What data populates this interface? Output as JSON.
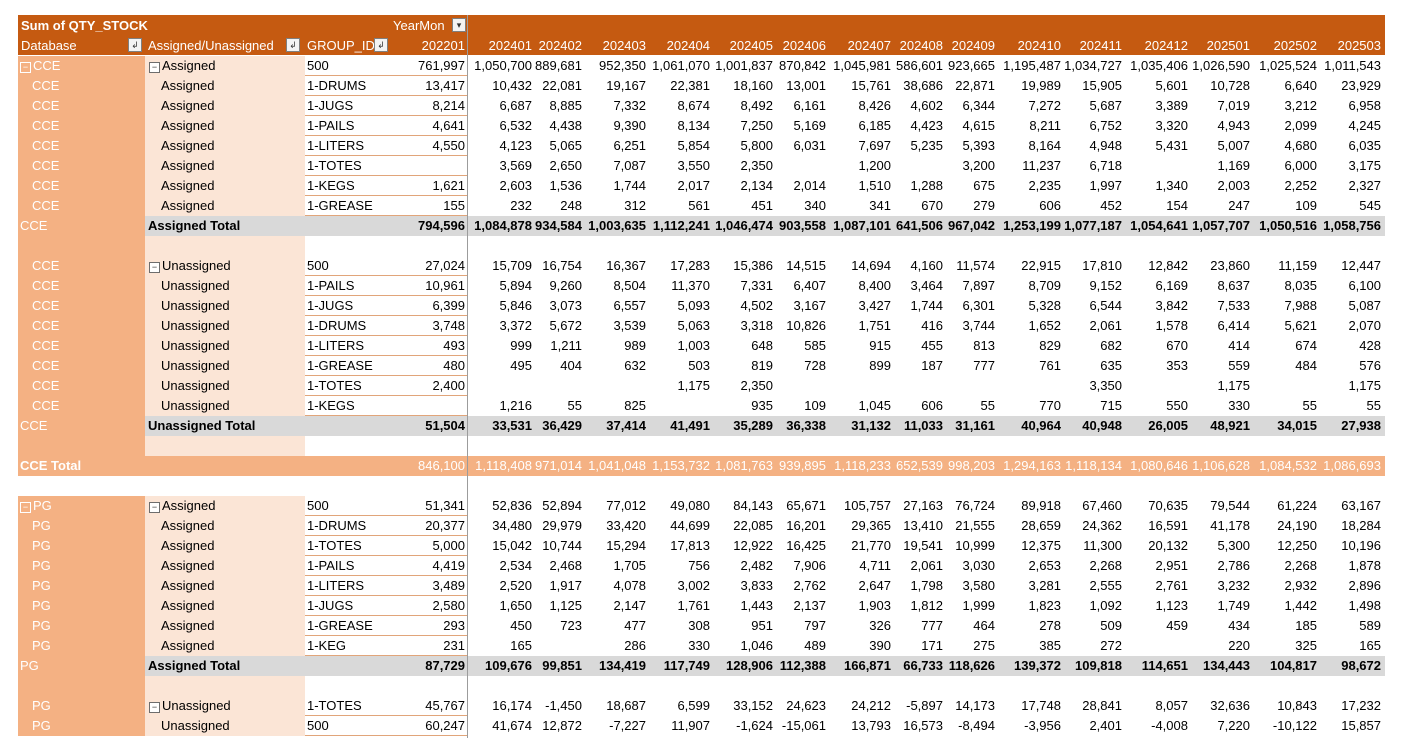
{
  "header": {
    "sum_label": "Sum of QTY_STOCK",
    "yearmon_label": "YearMon",
    "database_label": "Database",
    "assigned_label": "Assigned/Unassigned",
    "group_label": "GROUP_ID",
    "filter_icon": "filter-dropdown-icon",
    "columns": [
      "202201",
      "202401",
      "202402",
      "202403",
      "202404",
      "202405",
      "202406",
      "202407",
      "202408",
      "202409",
      "202410",
      "202411",
      "202412",
      "202501",
      "202502",
      "202503"
    ]
  },
  "rows": [
    {
      "type": "data",
      "db": "CCE",
      "au": "Assigned",
      "gid": "500",
      "first": true,
      "vals": [
        "761,997",
        "1,050,700",
        "889,681",
        "952,350",
        "1,061,070",
        "1,001,837",
        "870,842",
        "1,045,981",
        "586,601",
        "923,665",
        "1,195,487",
        "1,034,727",
        "1,035,406",
        "1,026,590",
        "1,025,524",
        "1,011,543"
      ]
    },
    {
      "type": "data",
      "db": "CCE",
      "au": "Assigned",
      "gid": "1-DRUMS",
      "vals": [
        "13,417",
        "10,432",
        "22,081",
        "19,167",
        "22,381",
        "18,160",
        "13,001",
        "15,761",
        "38,686",
        "22,871",
        "19,989",
        "15,905",
        "5,601",
        "10,728",
        "6,640",
        "23,929"
      ]
    },
    {
      "type": "data",
      "db": "CCE",
      "au": "Assigned",
      "gid": "1-JUGS",
      "vals": [
        "8,214",
        "6,687",
        "8,885",
        "7,332",
        "8,674",
        "8,492",
        "6,161",
        "8,426",
        "4,602",
        "6,344",
        "7,272",
        "5,687",
        "3,389",
        "7,019",
        "3,212",
        "6,958"
      ]
    },
    {
      "type": "data",
      "db": "CCE",
      "au": "Assigned",
      "gid": "1-PAILS",
      "vals": [
        "4,641",
        "6,532",
        "4,438",
        "9,390",
        "8,134",
        "7,250",
        "5,169",
        "6,185",
        "4,423",
        "4,615",
        "8,211",
        "6,752",
        "3,320",
        "4,943",
        "2,099",
        "4,245"
      ]
    },
    {
      "type": "data",
      "db": "CCE",
      "au": "Assigned",
      "gid": "1-LITERS",
      "vals": [
        "4,550",
        "4,123",
        "5,065",
        "6,251",
        "5,854",
        "5,800",
        "6,031",
        "7,697",
        "5,235",
        "5,393",
        "8,164",
        "4,948",
        "5,431",
        "5,007",
        "4,680",
        "6,035"
      ]
    },
    {
      "type": "data",
      "db": "CCE",
      "au": "Assigned",
      "gid": "1-TOTES",
      "vals": [
        "",
        "3,569",
        "2,650",
        "7,087",
        "3,550",
        "2,350",
        "",
        "1,200",
        "",
        "3,200",
        "11,237",
        "6,718",
        "",
        "1,169",
        "6,000",
        "3,175"
      ]
    },
    {
      "type": "data",
      "db": "CCE",
      "au": "Assigned",
      "gid": "1-KEGS",
      "vals": [
        "1,621",
        "2,603",
        "1,536",
        "1,744",
        "2,017",
        "2,134",
        "2,014",
        "1,510",
        "1,288",
        "675",
        "2,235",
        "1,997",
        "1,340",
        "2,003",
        "2,252",
        "2,327"
      ]
    },
    {
      "type": "data",
      "db": "CCE",
      "au": "Assigned",
      "gid": "1-GREASE",
      "vals": [
        "155",
        "232",
        "248",
        "312",
        "561",
        "451",
        "340",
        "341",
        "670",
        "279",
        "606",
        "452",
        "154",
        "247",
        "109",
        "545"
      ]
    },
    {
      "type": "total",
      "db": "CCE",
      "au": "Assigned Total",
      "gid": "",
      "vals": [
        "794,596",
        "1,084,878",
        "934,584",
        "1,003,635",
        "1,112,241",
        "1,046,474",
        "903,558",
        "1,087,101",
        "641,506",
        "967,042",
        "1,253,199",
        "1,077,187",
        "1,054,641",
        "1,057,707",
        "1,050,516",
        "1,058,756"
      ]
    },
    {
      "type": "blank",
      "db": "",
      "au": "",
      "gid": "",
      "vals": []
    },
    {
      "type": "data",
      "db": "CCE",
      "au": "Unassigned",
      "gid": "500",
      "first": true,
      "vals": [
        "27,024",
        "15,709",
        "16,754",
        "16,367",
        "17,283",
        "15,386",
        "14,515",
        "14,694",
        "4,160",
        "11,574",
        "22,915",
        "17,810",
        "12,842",
        "23,860",
        "11,159",
        "12,447"
      ]
    },
    {
      "type": "data",
      "db": "CCE",
      "au": "Unassigned",
      "gid": "1-PAILS",
      "vals": [
        "10,961",
        "5,894",
        "9,260",
        "8,504",
        "11,370",
        "7,331",
        "6,407",
        "8,400",
        "3,464",
        "7,897",
        "8,709",
        "9,152",
        "6,169",
        "8,637",
        "8,035",
        "6,100"
      ]
    },
    {
      "type": "data",
      "db": "CCE",
      "au": "Unassigned",
      "gid": "1-JUGS",
      "vals": [
        "6,399",
        "5,846",
        "3,073",
        "6,557",
        "5,093",
        "4,502",
        "3,167",
        "3,427",
        "1,744",
        "6,301",
        "5,328",
        "6,544",
        "3,842",
        "7,533",
        "7,988",
        "5,087"
      ]
    },
    {
      "type": "data",
      "db": "CCE",
      "au": "Unassigned",
      "gid": "1-DRUMS",
      "vals": [
        "3,748",
        "3,372",
        "5,672",
        "3,539",
        "5,063",
        "3,318",
        "10,826",
        "1,751",
        "416",
        "3,744",
        "1,652",
        "2,061",
        "1,578",
        "6,414",
        "5,621",
        "2,070"
      ]
    },
    {
      "type": "data",
      "db": "CCE",
      "au": "Unassigned",
      "gid": "1-LITERS",
      "vals": [
        "493",
        "999",
        "1,211",
        "989",
        "1,003",
        "648",
        "585",
        "915",
        "455",
        "813",
        "829",
        "682",
        "670",
        "414",
        "674",
        "428"
      ]
    },
    {
      "type": "data",
      "db": "CCE",
      "au": "Unassigned",
      "gid": "1-GREASE",
      "vals": [
        "480",
        "495",
        "404",
        "632",
        "503",
        "819",
        "728",
        "899",
        "187",
        "777",
        "761",
        "635",
        "353",
        "559",
        "484",
        "576"
      ]
    },
    {
      "type": "data",
      "db": "CCE",
      "au": "Unassigned",
      "gid": "1-TOTES",
      "vals": [
        "2,400",
        "",
        "",
        "",
        "1,175",
        "2,350",
        "",
        "",
        "",
        "",
        "",
        "3,350",
        "",
        "1,175",
        "",
        "1,175"
      ]
    },
    {
      "type": "data",
      "db": "CCE",
      "au": "Unassigned",
      "gid": "1-KEGS",
      "vals": [
        "",
        "1,216",
        "55",
        "825",
        "",
        "935",
        "109",
        "1,045",
        "606",
        "55",
        "770",
        "715",
        "550",
        "330",
        "55",
        "55"
      ]
    },
    {
      "type": "total",
      "db": "CCE",
      "au": "Unassigned Total",
      "gid": "",
      "vals": [
        "51,504",
        "33,531",
        "36,429",
        "37,414",
        "41,491",
        "35,289",
        "36,338",
        "31,132",
        "11,033",
        "31,161",
        "40,964",
        "40,948",
        "26,005",
        "48,921",
        "34,015",
        "27,938"
      ]
    },
    {
      "type": "blank",
      "db": "",
      "au": "",
      "gid": "",
      "vals": []
    },
    {
      "type": "grand",
      "db": "CCE Total",
      "au": "",
      "gid": "",
      "vals": [
        "846,100",
        "1,118,408",
        "971,014",
        "1,041,048",
        "1,153,732",
        "1,081,763",
        "939,895",
        "1,118,233",
        "652,539",
        "998,203",
        "1,294,163",
        "1,118,134",
        "1,080,646",
        "1,106,628",
        "1,084,532",
        "1,086,693"
      ]
    },
    {
      "type": "gap",
      "db": "",
      "au": "",
      "gid": "",
      "vals": []
    },
    {
      "type": "data",
      "db": "PG",
      "au": "Assigned",
      "gid": "500",
      "first": true,
      "dbfirst": true,
      "vals": [
        "51,341",
        "52,836",
        "52,894",
        "77,012",
        "49,080",
        "84,143",
        "65,671",
        "105,757",
        "27,163",
        "76,724",
        "89,918",
        "67,460",
        "70,635",
        "79,544",
        "61,224",
        "63,167"
      ]
    },
    {
      "type": "data",
      "db": "PG",
      "au": "Assigned",
      "gid": "1-DRUMS",
      "vals": [
        "20,377",
        "34,480",
        "29,979",
        "33,420",
        "44,699",
        "22,085",
        "16,201",
        "29,365",
        "13,410",
        "21,555",
        "28,659",
        "24,362",
        "16,591",
        "41,178",
        "24,190",
        "18,284"
      ]
    },
    {
      "type": "data",
      "db": "PG",
      "au": "Assigned",
      "gid": "1-TOTES",
      "vals": [
        "5,000",
        "15,042",
        "10,744",
        "15,294",
        "17,813",
        "12,922",
        "16,425",
        "21,770",
        "19,541",
        "10,999",
        "12,375",
        "11,300",
        "20,132",
        "5,300",
        "12,250",
        "10,196"
      ]
    },
    {
      "type": "data",
      "db": "PG",
      "au": "Assigned",
      "gid": "1-PAILS",
      "vals": [
        "4,419",
        "2,534",
        "2,468",
        "1,705",
        "756",
        "2,482",
        "7,906",
        "4,711",
        "2,061",
        "3,030",
        "2,653",
        "2,268",
        "2,951",
        "2,786",
        "2,268",
        "1,878"
      ]
    },
    {
      "type": "data",
      "db": "PG",
      "au": "Assigned",
      "gid": "1-LITERS",
      "vals": [
        "3,489",
        "2,520",
        "1,917",
        "4,078",
        "3,002",
        "3,833",
        "2,762",
        "2,647",
        "1,798",
        "3,580",
        "3,281",
        "2,555",
        "2,761",
        "3,232",
        "2,932",
        "2,896"
      ]
    },
    {
      "type": "data",
      "db": "PG",
      "au": "Assigned",
      "gid": "1-JUGS",
      "vals": [
        "2,580",
        "1,650",
        "1,125",
        "2,147",
        "1,761",
        "1,443",
        "2,137",
        "1,903",
        "1,812",
        "1,999",
        "1,823",
        "1,092",
        "1,123",
        "1,749",
        "1,442",
        "1,498"
      ]
    },
    {
      "type": "data",
      "db": "PG",
      "au": "Assigned",
      "gid": "1-GREASE",
      "vals": [
        "293",
        "450",
        "723",
        "477",
        "308",
        "951",
        "797",
        "326",
        "777",
        "464",
        "278",
        "509",
        "459",
        "434",
        "185",
        "589"
      ]
    },
    {
      "type": "data",
      "db": "PG",
      "au": "Assigned",
      "gid": "1-KEG",
      "vals": [
        "231",
        "165",
        "",
        "286",
        "330",
        "1,046",
        "489",
        "390",
        "171",
        "275",
        "385",
        "272",
        "",
        "220",
        "325",
        "165"
      ]
    },
    {
      "type": "total",
      "db": "PG",
      "au": "Assigned Total",
      "gid": "",
      "vals": [
        "87,729",
        "109,676",
        "99,851",
        "134,419",
        "117,749",
        "128,906",
        "112,388",
        "166,871",
        "66,733",
        "118,626",
        "139,372",
        "109,818",
        "114,651",
        "134,443",
        "104,817",
        "98,672"
      ]
    },
    {
      "type": "blank",
      "db": "",
      "au": "",
      "gid": "",
      "vals": []
    },
    {
      "type": "data",
      "db": "PG",
      "au": "Unassigned",
      "gid": "1-TOTES",
      "first": true,
      "vals": [
        "45,767",
        "16,174",
        "-1,450",
        "18,687",
        "6,599",
        "33,152",
        "24,623",
        "24,212",
        "-5,897",
        "14,173",
        "17,748",
        "28,841",
        "8,057",
        "32,636",
        "10,843",
        "17,232"
      ]
    },
    {
      "type": "data",
      "db": "PG",
      "au": "Unassigned",
      "gid": "500",
      "vals": [
        "60,247",
        "41,674",
        "12,872",
        "-7,227",
        "11,907",
        "-1,624",
        "-15,061",
        "13,793",
        "16,573",
        "-8,494",
        "-3,956",
        "2,401",
        "-4,008",
        "7,220",
        "-10,122",
        "15,857"
      ]
    }
  ],
  "colors": {
    "header_bg": "#c55a11",
    "db_band": "#f4b183",
    "au_band": "#fbe5d6",
    "total_band": "#d9d9d9"
  }
}
